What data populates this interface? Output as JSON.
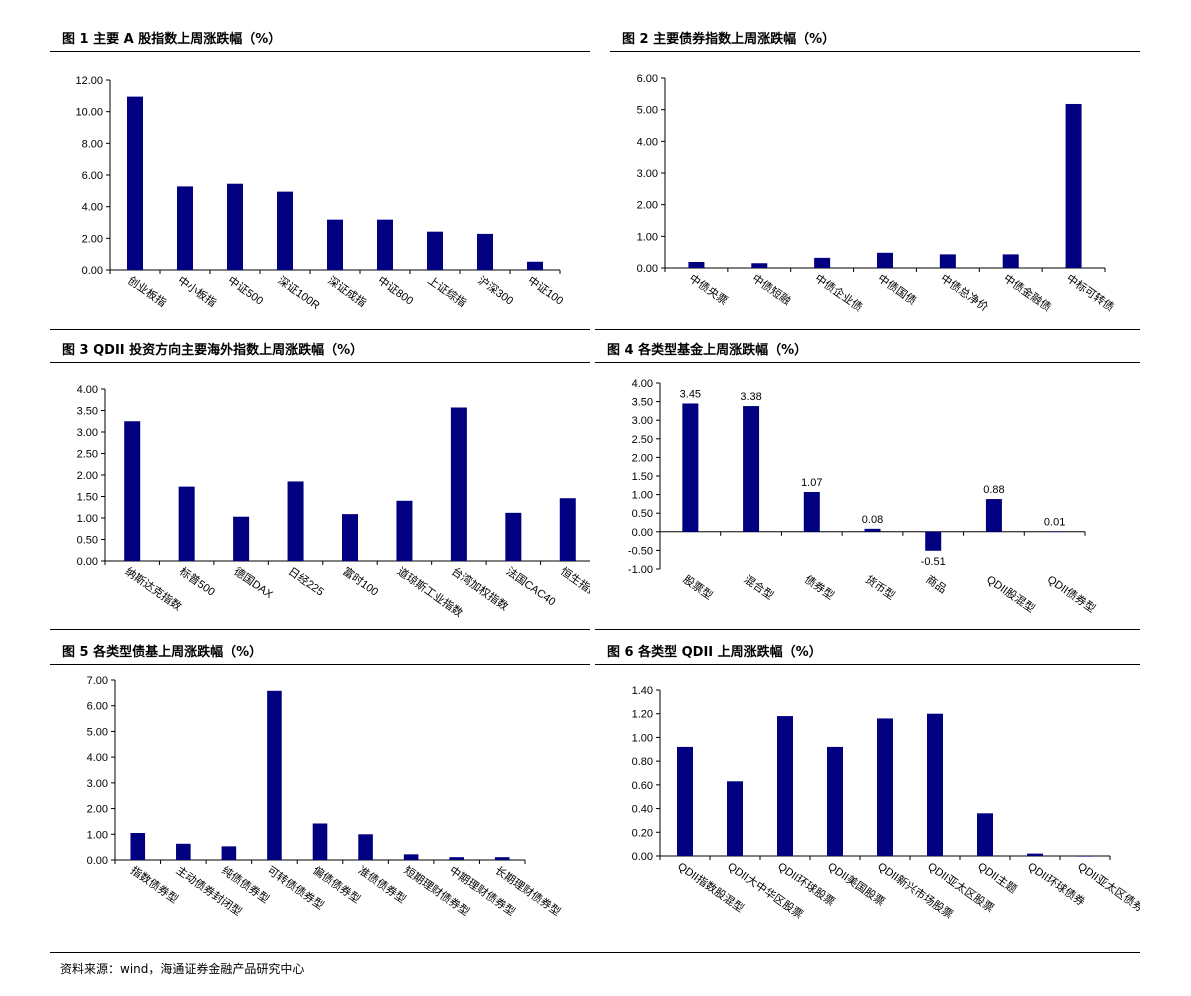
{
  "charts": [
    {
      "title": "图 1   主要 A 股指数上周涨跌幅（%）",
      "type": "bar",
      "categories": [
        "创业板指",
        "中小板指",
        "中证500",
        "深证100R",
        "深证成指",
        "中证800",
        "上证综指",
        "沪深300",
        "中证100"
      ],
      "values": [
        10.95,
        5.28,
        5.45,
        4.95,
        3.18,
        3.18,
        2.42,
        2.28,
        0.52
      ],
      "ylim": [
        0,
        12
      ],
      "ytick_step": 2,
      "decimals": 2,
      "show_value_labels": false
    },
    {
      "title": "图 2  主要债券指数上周涨跌幅（%）",
      "type": "bar",
      "categories": [
        "中债央票",
        "中债短融",
        "中债企业债",
        "中债国债",
        "中债总净价",
        "中债金融债",
        "中标可转债"
      ],
      "values": [
        0.19,
        0.15,
        0.32,
        0.48,
        0.43,
        0.43,
        5.18
      ],
      "ylim": [
        0,
        6
      ],
      "ytick_step": 1,
      "decimals": 2,
      "show_value_labels": false
    },
    {
      "title": "图 3 QDII 投资方向主要海外指数上周涨跌幅（%）",
      "type": "bar",
      "categories": [
        "纳斯达克指数",
        "标普500",
        "德国DAX",
        "日经225",
        "富时100",
        "道琼斯工业指数",
        "台湾加权指数",
        "法国CAC40",
        "恒生指数"
      ],
      "values": [
        3.25,
        1.73,
        1.03,
        1.85,
        1.09,
        1.4,
        3.57,
        1.12,
        1.46
      ],
      "ylim": [
        0,
        4
      ],
      "ytick_step": 0.5,
      "decimals": 2,
      "show_value_labels": false
    },
    {
      "title": "图 4  各类型基金上周涨跌幅（%）",
      "type": "bar",
      "categories": [
        "股票型",
        "混合型",
        "债券型",
        "货币型",
        "商品",
        "QDII股混型",
        "QDII债券型"
      ],
      "values": [
        3.45,
        3.38,
        1.07,
        0.08,
        -0.51,
        0.88,
        0.01
      ],
      "value_labels": [
        "3.45",
        "3.38",
        "1.07",
        "0.08",
        "-0.51",
        "0.88",
        "0.01"
      ],
      "ylim": [
        -1,
        4
      ],
      "ytick_step": 0.5,
      "decimals": 2,
      "show_value_labels": true
    },
    {
      "title": "图 5  各类型债基上周涨跌幅（%）",
      "type": "bar",
      "categories": [
        "指数债券型",
        "主动债券封闭型",
        "纯债债券型",
        "可转债债券型",
        "偏债债券型",
        "准债债券型",
        "短期理财债券型",
        "中期理财债券型",
        "长期理财债券型"
      ],
      "values": [
        1.05,
        0.63,
        0.53,
        6.58,
        1.42,
        1.0,
        0.22,
        0.11,
        0.11
      ],
      "ylim": [
        0,
        7
      ],
      "ytick_step": 1,
      "decimals": 2,
      "show_value_labels": false
    },
    {
      "title": "图 6  各类型 QDII 上周涨跌幅（%）",
      "type": "bar",
      "categories": [
        "QDII指数股混型",
        "QDII大中华区股票",
        "QDII环球股票",
        "QDII美国股票",
        "QDII新兴市场股票",
        "QDII亚太区股票",
        "QDII主题",
        "QDII环球债券",
        "QDII亚太区债券"
      ],
      "values": [
        0.92,
        0.63,
        1.18,
        0.92,
        1.16,
        1.2,
        0.36,
        0.02,
        0.0
      ],
      "ylim": [
        0,
        1.4
      ],
      "ytick_step": 0.2,
      "decimals": 2,
      "show_value_labels": false
    }
  ],
  "source": "资料来源：wind，海通证券金融产品研究中心",
  "bar_color": "#000080"
}
